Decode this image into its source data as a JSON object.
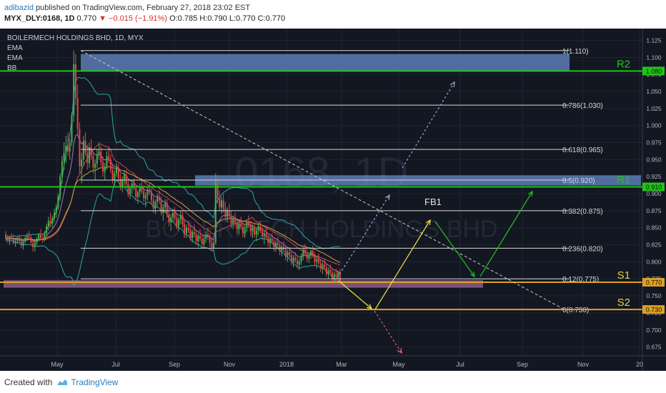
{
  "header": {
    "author": "adibazid",
    "published_text": "published on TradingView.com, February 27, 2018 23:02 EST",
    "symbol": "MYX_DLY:0168, 1D",
    "last": "0.770",
    "change": "−0.015 (−1.91%)",
    "ohlc": "O:0.785 H:0.790 L:0.770 C:0.770"
  },
  "footer": {
    "created_text": "Created with",
    "brand": "TradingView",
    "logo_icon": "tradingview-logo-icon"
  },
  "chart_data": {
    "type": "candlestick",
    "title": "BOILERMECH HOLDINGS BHD, 1D, MYX",
    "indicators": [
      "EMA",
      "EMA",
      "BB"
    ],
    "watermark": {
      "symbol": "0168, 1D",
      "name": "BOILERMECH HOLDINGS BHD"
    },
    "x_tick_labels": [
      "May",
      "Jul",
      "Sep",
      "Nov",
      "2018",
      "Mar",
      "May",
      "Jul",
      "Sep",
      "Nov",
      "20"
    ],
    "y_ticks": [
      "1.125",
      "1.100",
      "1.075",
      "1.050",
      "1.025",
      "1.000",
      "0.975",
      "0.950",
      "0.925",
      "0.900",
      "0.875",
      "0.850",
      "0.825",
      "0.800",
      "0.775",
      "0.750",
      "0.725",
      "0.700",
      "0.675"
    ],
    "ylim": [
      0.662,
      1.136
    ],
    "fib_levels": [
      {
        "label": "1(1.110)",
        "value": 1.11
      },
      {
        "label": "0.786(1.030)",
        "value": 1.03
      },
      {
        "label": "0.618(0.965)",
        "value": 0.965
      },
      {
        "label": "0.5(0.920)",
        "value": 0.92
      },
      {
        "label": "0.382(0.875)",
        "value": 0.875
      },
      {
        "label": "0.236(0.820)",
        "value": 0.82
      },
      {
        "label": "0.12(0.775)",
        "value": 0.775
      },
      {
        "label": "0(0.730)",
        "value": 0.73
      }
    ],
    "levels": [
      {
        "name": "R2",
        "price_label": "1.080",
        "value": 1.08,
        "color": "#22c41a"
      },
      {
        "name": "R1",
        "price_label": "0.910",
        "value": 0.91,
        "color": "#22c41a"
      },
      {
        "name": "S1",
        "price_label": "0.770",
        "value": 0.77,
        "color": "#e0a020"
      },
      {
        "name": "S2",
        "price_label": "0.730",
        "value": 0.73,
        "color": "#e0a020"
      }
    ],
    "annotation_text": "FB1",
    "zones": [
      {
        "name": "resistance-zone-top",
        "y1": 1.08,
        "y2": 1.105,
        "color": "#6a8fd0"
      },
      {
        "name": "resistance-zone-mid",
        "y1": 0.912,
        "y2": 0.927,
        "color": "#6a8fd0"
      },
      {
        "name": "support-zone",
        "y1": 0.762,
        "y2": 0.773,
        "color": "#a06aa0"
      }
    ],
    "candles": [
      [
        0.84,
        0.845,
        0.83,
        0.835
      ],
      [
        0.835,
        0.84,
        0.828,
        0.832
      ],
      [
        0.832,
        0.838,
        0.825,
        0.836
      ],
      [
        0.836,
        0.842,
        0.83,
        0.834
      ],
      [
        0.834,
        0.84,
        0.826,
        0.829
      ],
      [
        0.829,
        0.835,
        0.822,
        0.831
      ],
      [
        0.831,
        0.838,
        0.826,
        0.834
      ],
      [
        0.834,
        0.84,
        0.828,
        0.83
      ],
      [
        0.83,
        0.836,
        0.82,
        0.824
      ],
      [
        0.824,
        0.833,
        0.818,
        0.83
      ],
      [
        0.83,
        0.838,
        0.826,
        0.835
      ],
      [
        0.835,
        0.842,
        0.83,
        0.838
      ],
      [
        0.838,
        0.845,
        0.832,
        0.836
      ],
      [
        0.836,
        0.84,
        0.826,
        0.828
      ],
      [
        0.828,
        0.834,
        0.815,
        0.822
      ],
      [
        0.822,
        0.83,
        0.815,
        0.828
      ],
      [
        0.828,
        0.837,
        0.824,
        0.834
      ],
      [
        0.834,
        0.842,
        0.83,
        0.84
      ],
      [
        0.84,
        0.848,
        0.832,
        0.835
      ],
      [
        0.835,
        0.84,
        0.828,
        0.832
      ],
      [
        0.832,
        0.845,
        0.83,
        0.842
      ],
      [
        0.842,
        0.856,
        0.838,
        0.852
      ],
      [
        0.852,
        0.866,
        0.846,
        0.86
      ],
      [
        0.86,
        0.872,
        0.85,
        0.856
      ],
      [
        0.856,
        0.868,
        0.85,
        0.864
      ],
      [
        0.864,
        0.878,
        0.858,
        0.872
      ],
      [
        0.872,
        0.885,
        0.865,
        0.88
      ],
      [
        0.88,
        0.9,
        0.876,
        0.896
      ],
      [
        0.896,
        0.93,
        0.89,
        0.925
      ],
      [
        0.925,
        0.955,
        0.915,
        0.948
      ],
      [
        0.948,
        0.975,
        0.935,
        0.96
      ],
      [
        0.96,
        0.985,
        0.945,
        0.97
      ],
      [
        0.97,
        0.99,
        0.955,
        0.962
      ],
      [
        0.962,
        0.98,
        0.95,
        0.975
      ],
      [
        0.975,
        1.02,
        0.97,
        1.015
      ],
      [
        1.015,
        1.11,
        1.005,
        1.09
      ],
      [
        1.09,
        1.105,
        1.03,
        1.04
      ],
      [
        1.04,
        1.06,
        0.985,
        0.995
      ],
      [
        0.995,
        1.005,
        0.93,
        0.94
      ],
      [
        0.94,
        0.96,
        0.915,
        0.95
      ],
      [
        0.95,
        0.985,
        0.94,
        0.978
      ],
      [
        0.978,
        0.99,
        0.955,
        0.96
      ],
      [
        0.96,
        0.972,
        0.935,
        0.945
      ],
      [
        0.945,
        0.975,
        0.938,
        0.968
      ],
      [
        0.968,
        0.98,
        0.95,
        0.955
      ],
      [
        0.955,
        0.962,
        0.93,
        0.938
      ],
      [
        0.938,
        0.95,
        0.92,
        0.944
      ],
      [
        0.944,
        0.965,
        0.938,
        0.958
      ],
      [
        0.958,
        0.975,
        0.95,
        0.962
      ],
      [
        0.962,
        0.97,
        0.94,
        0.946
      ],
      [
        0.946,
        0.955,
        0.925,
        0.932
      ],
      [
        0.932,
        0.945,
        0.92,
        0.94
      ],
      [
        0.94,
        0.962,
        0.935,
        0.955
      ],
      [
        0.955,
        0.968,
        0.945,
        0.95
      ],
      [
        0.95,
        0.958,
        0.93,
        0.935
      ],
      [
        0.935,
        0.942,
        0.915,
        0.92
      ],
      [
        0.92,
        0.935,
        0.912,
        0.93
      ],
      [
        0.93,
        0.945,
        0.925,
        0.938
      ],
      [
        0.938,
        0.944,
        0.918,
        0.922
      ],
      [
        0.922,
        0.93,
        0.905,
        0.91
      ],
      [
        0.91,
        0.925,
        0.902,
        0.92
      ],
      [
        0.92,
        0.935,
        0.912,
        0.928
      ],
      [
        0.928,
        0.935,
        0.91,
        0.914
      ],
      [
        0.914,
        0.92,
        0.895,
        0.9
      ],
      [
        0.9,
        0.912,
        0.892,
        0.908
      ],
      [
        0.908,
        0.92,
        0.9,
        0.915
      ],
      [
        0.915,
        0.922,
        0.905,
        0.908
      ],
      [
        0.908,
        0.912,
        0.89,
        0.895
      ],
      [
        0.895,
        0.905,
        0.885,
        0.902
      ],
      [
        0.902,
        0.915,
        0.895,
        0.91
      ],
      [
        0.91,
        0.92,
        0.9,
        0.904
      ],
      [
        0.904,
        0.912,
        0.888,
        0.893
      ],
      [
        0.893,
        0.902,
        0.88,
        0.898
      ],
      [
        0.898,
        0.91,
        0.89,
        0.906
      ],
      [
        0.906,
        0.916,
        0.898,
        0.902
      ],
      [
        0.902,
        0.908,
        0.885,
        0.89
      ],
      [
        0.89,
        0.898,
        0.872,
        0.878
      ],
      [
        0.878,
        0.892,
        0.87,
        0.888
      ],
      [
        0.888,
        0.9,
        0.88,
        0.895
      ],
      [
        0.895,
        0.905,
        0.885,
        0.89
      ],
      [
        0.89,
        0.896,
        0.868,
        0.872
      ],
      [
        0.872,
        0.885,
        0.86,
        0.88
      ],
      [
        0.88,
        0.892,
        0.872,
        0.886
      ],
      [
        0.886,
        0.892,
        0.865,
        0.87
      ],
      [
        0.87,
        0.88,
        0.852,
        0.858
      ],
      [
        0.858,
        0.87,
        0.845,
        0.865
      ],
      [
        0.865,
        0.878,
        0.858,
        0.872
      ],
      [
        0.872,
        0.88,
        0.86,
        0.864
      ],
      [
        0.864,
        0.872,
        0.848,
        0.852
      ],
      [
        0.852,
        0.866,
        0.845,
        0.862
      ],
      [
        0.862,
        0.875,
        0.855,
        0.868
      ],
      [
        0.868,
        0.875,
        0.85,
        0.855
      ],
      [
        0.855,
        0.862,
        0.835,
        0.842
      ],
      [
        0.842,
        0.855,
        0.835,
        0.85
      ],
      [
        0.85,
        0.86,
        0.842,
        0.846
      ],
      [
        0.846,
        0.852,
        0.83,
        0.835
      ],
      [
        0.835,
        0.848,
        0.828,
        0.844
      ],
      [
        0.844,
        0.855,
        0.836,
        0.84
      ],
      [
        0.84,
        0.846,
        0.825,
        0.83
      ],
      [
        0.83,
        0.842,
        0.822,
        0.838
      ],
      [
        0.838,
        0.848,
        0.83,
        0.834
      ],
      [
        0.834,
        0.84,
        0.82,
        0.826
      ],
      [
        0.826,
        0.838,
        0.82,
        0.834
      ],
      [
        0.834,
        0.845,
        0.828,
        0.84
      ],
      [
        0.84,
        0.85,
        0.832,
        0.836
      ],
      [
        0.836,
        0.842,
        0.822,
        0.828
      ],
      [
        0.828,
        0.836,
        0.815,
        0.82
      ],
      [
        0.82,
        0.832,
        0.815,
        0.828
      ],
      [
        0.828,
        0.93,
        0.825,
        0.918
      ],
      [
        0.918,
        0.925,
        0.885,
        0.892
      ],
      [
        0.892,
        0.905,
        0.875,
        0.88
      ],
      [
        0.88,
        0.895,
        0.87,
        0.89
      ],
      [
        0.89,
        0.9,
        0.872,
        0.878
      ],
      [
        0.878,
        0.888,
        0.86,
        0.866
      ],
      [
        0.866,
        0.88,
        0.858,
        0.875
      ],
      [
        0.875,
        0.885,
        0.862,
        0.868
      ],
      [
        0.868,
        0.875,
        0.85,
        0.856
      ],
      [
        0.856,
        0.868,
        0.848,
        0.864
      ],
      [
        0.864,
        0.872,
        0.852,
        0.858
      ],
      [
        0.858,
        0.864,
        0.842,
        0.848
      ],
      [
        0.848,
        0.86,
        0.84,
        0.856
      ],
      [
        0.856,
        0.866,
        0.848,
        0.852
      ],
      [
        0.852,
        0.858,
        0.836,
        0.842
      ],
      [
        0.842,
        0.855,
        0.835,
        0.85
      ],
      [
        0.85,
        0.862,
        0.844,
        0.858
      ],
      [
        0.858,
        0.868,
        0.85,
        0.854
      ],
      [
        0.854,
        0.86,
        0.838,
        0.845
      ],
      [
        0.845,
        0.855,
        0.835,
        0.85
      ],
      [
        0.85,
        0.858,
        0.836,
        0.84
      ],
      [
        0.84,
        0.85,
        0.83,
        0.846
      ],
      [
        0.846,
        0.856,
        0.84,
        0.852
      ],
      [
        0.852,
        0.86,
        0.842,
        0.845
      ],
      [
        0.845,
        0.852,
        0.832,
        0.838
      ],
      [
        0.838,
        0.846,
        0.826,
        0.842
      ],
      [
        0.842,
        0.85,
        0.834,
        0.836
      ],
      [
        0.836,
        0.842,
        0.822,
        0.828
      ],
      [
        0.828,
        0.838,
        0.82,
        0.834
      ],
      [
        0.834,
        0.842,
        0.826,
        0.83
      ],
      [
        0.83,
        0.836,
        0.815,
        0.822
      ],
      [
        0.822,
        0.832,
        0.815,
        0.828
      ],
      [
        0.828,
        0.836,
        0.82,
        0.824
      ],
      [
        0.824,
        0.83,
        0.81,
        0.816
      ],
      [
        0.816,
        0.826,
        0.808,
        0.822
      ],
      [
        0.822,
        0.83,
        0.814,
        0.818
      ],
      [
        0.818,
        0.824,
        0.802,
        0.808
      ],
      [
        0.808,
        0.818,
        0.8,
        0.814
      ],
      [
        0.814,
        0.822,
        0.806,
        0.81
      ],
      [
        0.81,
        0.816,
        0.795,
        0.8
      ],
      [
        0.8,
        0.81,
        0.792,
        0.806
      ],
      [
        0.806,
        0.814,
        0.798,
        0.802
      ],
      [
        0.802,
        0.808,
        0.79,
        0.796
      ],
      [
        0.796,
        0.805,
        0.788,
        0.8
      ],
      [
        0.8,
        0.812,
        0.795,
        0.808
      ],
      [
        0.808,
        0.822,
        0.802,
        0.818
      ],
      [
        0.818,
        0.826,
        0.808,
        0.812
      ],
      [
        0.812,
        0.818,
        0.8,
        0.805
      ],
      [
        0.805,
        0.814,
        0.798,
        0.81
      ],
      [
        0.81,
        0.82,
        0.804,
        0.816
      ],
      [
        0.816,
        0.824,
        0.806,
        0.808
      ],
      [
        0.808,
        0.814,
        0.795,
        0.8
      ],
      [
        0.8,
        0.808,
        0.79,
        0.804
      ],
      [
        0.804,
        0.812,
        0.796,
        0.798
      ],
      [
        0.798,
        0.804,
        0.785,
        0.79
      ],
      [
        0.79,
        0.8,
        0.782,
        0.796
      ],
      [
        0.796,
        0.804,
        0.788,
        0.792
      ],
      [
        0.792,
        0.798,
        0.778,
        0.782
      ],
      [
        0.782,
        0.792,
        0.775,
        0.788
      ],
      [
        0.788,
        0.796,
        0.78,
        0.784
      ],
      [
        0.784,
        0.79,
        0.77,
        0.775
      ],
      [
        0.775,
        0.786,
        0.77,
        0.782
      ],
      [
        0.782,
        0.79,
        0.772,
        0.778
      ],
      [
        0.778,
        0.786,
        0.77,
        0.785
      ],
      [
        0.785,
        0.79,
        0.77,
        0.77
      ]
    ]
  }
}
